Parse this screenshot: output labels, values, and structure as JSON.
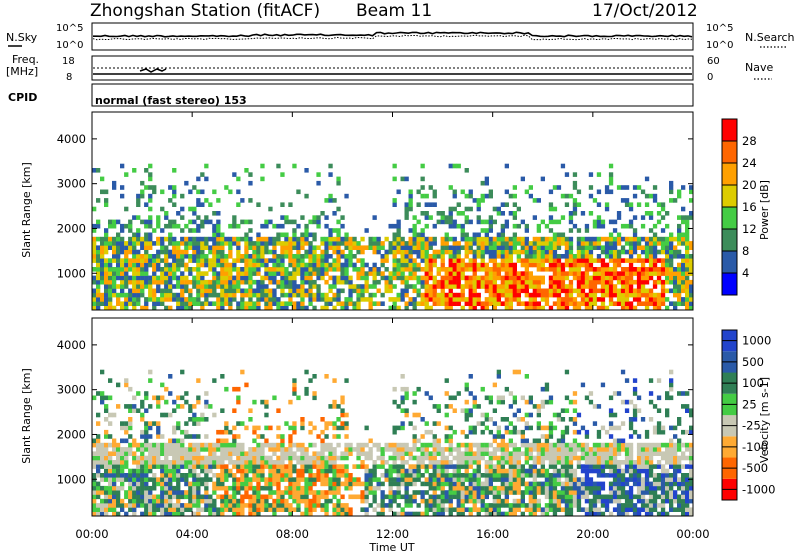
{
  "header": {
    "station": "Zhongshan Station (fitACF)",
    "beam": "Beam 11",
    "date": "17/Oct/2012"
  },
  "top_panels": {
    "nsky_label": "N.Sky",
    "nsky_ticks": [
      "10^5",
      "10^0"
    ],
    "nsearch_label": "N.Search",
    "nsearch_ticks": [
      "10^5",
      "10^0"
    ],
    "freq_label_line1": "Freq.",
    "freq_label_line2": "[MHz]",
    "freq_ticks": [
      "18",
      "8"
    ],
    "nave_label": "Nave",
    "nave_ticks": [
      "60",
      "0"
    ],
    "cpid_label": "CPID",
    "cpid_text": "normal (fast stereo) 153"
  },
  "colors": {
    "power": [
      "#0000ff",
      "#2a5aa8",
      "#3c8c5a",
      "#44cc44",
      "#ddcc00",
      "#ffa000",
      "#ff6600",
      "#ff0000"
    ],
    "velocity": [
      "#ff0000",
      "#ff6600",
      "#ffaa33",
      "#c8c8b4",
      "#44cc44",
      "#2f7f55",
      "#2a5aa8",
      "#2244cc"
    ]
  },
  "chart_data": [
    {
      "type": "heatmap",
      "name": "power",
      "ylabel": "Slant Range [km]",
      "xlabel": "Time UT",
      "xlim": [
        "00:00",
        "00:00"
      ],
      "x_ticks": [
        "00:00",
        "04:00",
        "08:00",
        "12:00",
        "16:00",
        "20:00",
        "00:00"
      ],
      "ylim": [
        180,
        4600
      ],
      "y_ticks": [
        1000,
        2000,
        3000,
        4000
      ],
      "colorbar_label": "Power [dB]",
      "colorbar_ticks": [
        "28",
        "24",
        "20",
        "16",
        "12",
        "8",
        "4"
      ],
      "colorbar_range": [
        0,
        32
      ]
    },
    {
      "type": "heatmap",
      "name": "velocity",
      "ylabel": "Slant Range [km]",
      "xlabel": "Time UT",
      "xlim": [
        "00:00",
        "00:00"
      ],
      "x_ticks": [
        "00:00",
        "04:00",
        "08:00",
        "12:00",
        "16:00",
        "20:00",
        "00:00"
      ],
      "ylim": [
        180,
        4600
      ],
      "y_ticks": [
        1000,
        2000,
        3000,
        4000
      ],
      "colorbar_label": "Velocity [m s-1]",
      "colorbar_ticks": [
        "1000",
        "500",
        "100",
        "25",
        "-25",
        "-100",
        "-500",
        "-1000"
      ]
    }
  ]
}
